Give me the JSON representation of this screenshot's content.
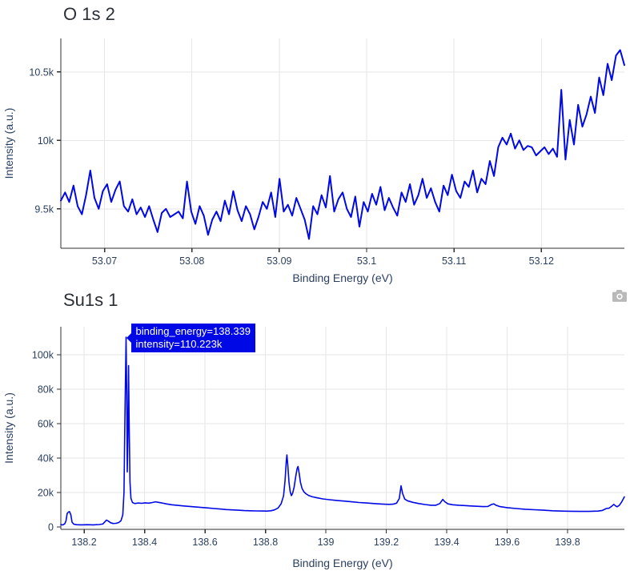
{
  "colors": {
    "line": "#0008e6",
    "grid": "#e6e6e6",
    "axis": "#2f2f2f",
    "tick_text": "#2a3f5f",
    "axis_title_text": "#2a3f5f",
    "chart_title_text": "#2b2f36",
    "tooltip_bg": "#0008e6",
    "tooltip_text": "#ffffff",
    "camera_icon": "#b9b9b9"
  },
  "modebar": {
    "camera_icon": "download-plot-as-png"
  },
  "chart_data": [
    {
      "type": "line",
      "title": "O 1s 2",
      "xlabel": "Binding Energy (eV)",
      "ylabel": "Intensity (a.u.)",
      "y_unit": "k (thousands, a.u.)",
      "xlim": [
        53.065,
        53.1295
      ],
      "ylim": [
        9.212,
        10.745
      ],
      "grid": true,
      "legend": "none",
      "x_ticks": {
        "values": [
          53.07,
          53.08,
          53.09,
          53.1,
          53.11,
          53.12
        ],
        "labels": [
          "53.07",
          "53.08",
          "53.09",
          "53.1",
          "53.11",
          "53.12"
        ]
      },
      "y_ticks": {
        "values": [
          9.5,
          10,
          10.5
        ],
        "labels": [
          "9.5k",
          "10k",
          "10.5k"
        ]
      },
      "x_start": 53.065,
      "x_end": 53.1295,
      "values": [
        9.56,
        9.62,
        9.55,
        9.67,
        9.52,
        9.46,
        9.6,
        9.78,
        9.58,
        9.5,
        9.63,
        9.68,
        9.55,
        9.64,
        9.7,
        9.52,
        9.48,
        9.57,
        9.46,
        9.51,
        9.44,
        9.52,
        9.42,
        9.33,
        9.47,
        9.5,
        9.44,
        9.46,
        9.48,
        9.43,
        9.7,
        9.48,
        9.39,
        9.52,
        9.45,
        9.31,
        9.42,
        9.48,
        9.41,
        9.56,
        9.46,
        9.63,
        9.49,
        9.41,
        9.52,
        9.46,
        9.35,
        9.44,
        9.55,
        9.5,
        9.62,
        9.44,
        9.72,
        9.48,
        9.53,
        9.45,
        9.58,
        9.5,
        9.42,
        9.28,
        9.52,
        9.46,
        9.6,
        9.51,
        9.74,
        9.48,
        9.57,
        9.62,
        9.5,
        9.44,
        9.59,
        9.37,
        9.55,
        9.48,
        9.61,
        9.53,
        9.66,
        9.49,
        9.58,
        9.51,
        9.45,
        9.62,
        9.55,
        9.68,
        9.53,
        9.6,
        9.72,
        9.58,
        9.65,
        9.55,
        9.48,
        9.67,
        9.6,
        9.75,
        9.63,
        9.58,
        9.7,
        9.66,
        9.78,
        9.62,
        9.72,
        9.68,
        9.85,
        9.74,
        9.95,
        10.02,
        9.97,
        10.05,
        9.94,
        10.0,
        9.93,
        9.96,
        9.95,
        9.89,
        9.92,
        9.95,
        9.9,
        9.94,
        9.88,
        10.37,
        9.86,
        10.15,
        9.97,
        10.26,
        10.1,
        10.19,
        10.32,
        10.2,
        10.46,
        10.33,
        10.56,
        10.44,
        10.62,
        10.66,
        10.55
      ]
    },
    {
      "type": "line",
      "title": "Su1s 1",
      "xlabel": "Binding Energy (eV)",
      "ylabel": "Intensity (a.u.)",
      "y_unit": "k (thousands, a.u.)",
      "xlim": [
        138.123,
        139.988
      ],
      "ylim": [
        -1.4,
        116.3
      ],
      "grid": true,
      "legend": "none",
      "x_ticks": {
        "values": [
          138.2,
          138.4,
          138.6,
          138.8,
          139,
          139.2,
          139.4,
          139.6,
          139.8
        ],
        "labels": [
          "138.2",
          "138.4",
          "138.6",
          "138.8",
          "139",
          "139.2",
          "139.4",
          "139.6",
          "139.8"
        ]
      },
      "y_ticks": {
        "values": [
          0,
          20,
          40,
          60,
          80,
          100
        ],
        "labels": [
          "0",
          "20k",
          "40k",
          "60k",
          "80k",
          "100k"
        ]
      },
      "tooltip": {
        "line1": "binding_energy=138.339",
        "line2": "intensity=110.223k",
        "binding_energy": 138.339,
        "intensity_k": 110.223
      },
      "x": [
        138.123,
        138.13,
        138.136,
        138.14,
        138.144,
        138.148,
        138.152,
        138.156,
        138.16,
        138.166,
        138.175,
        138.19,
        138.21,
        138.23,
        138.25,
        138.262,
        138.27,
        138.274,
        138.28,
        138.288,
        138.296,
        138.305,
        138.314,
        138.322,
        138.328,
        138.332,
        138.335,
        138.339,
        138.341,
        138.343,
        138.345,
        138.347,
        138.349,
        138.352,
        138.355,
        138.36,
        138.368,
        138.378,
        138.39,
        138.402,
        138.414,
        138.426,
        138.436,
        138.446,
        138.458,
        138.472,
        138.49,
        138.51,
        138.53,
        138.55,
        138.57,
        138.59,
        138.61,
        138.63,
        138.65,
        138.67,
        138.69,
        138.71,
        138.73,
        138.75,
        138.77,
        138.79,
        138.805,
        138.818,
        138.83,
        138.842,
        138.852,
        138.86,
        138.865,
        138.869,
        138.871,
        138.874,
        138.878,
        138.882,
        138.886,
        138.89,
        138.895,
        138.9,
        138.905,
        138.908,
        138.912,
        138.916,
        138.921,
        138.927,
        138.934,
        138.943,
        138.956,
        138.972,
        138.99,
        139.012,
        139.036,
        139.06,
        139.085,
        139.11,
        139.135,
        139.16,
        139.185,
        139.208,
        139.222,
        139.234,
        139.243,
        139.249,
        139.254,
        139.261,
        139.27,
        139.288,
        139.308,
        139.328,
        139.348,
        139.364,
        139.377,
        139.387,
        139.394,
        139.404,
        139.42,
        139.44,
        139.46,
        139.48,
        139.5,
        139.52,
        139.536,
        139.548,
        139.556,
        139.563,
        139.576,
        139.6,
        139.63,
        139.66,
        139.69,
        139.72,
        139.75,
        139.78,
        139.81,
        139.84,
        139.87,
        139.9,
        139.915,
        139.928,
        139.937,
        139.946,
        139.953,
        139.959,
        139.964,
        139.971,
        139.979,
        139.985,
        139.988
      ],
      "y": [
        1.3,
        1.2,
        1.8,
        3.5,
        7.8,
        8.6,
        8.9,
        7.0,
        2.8,
        1.6,
        1.3,
        1.2,
        1.3,
        1.2,
        1.4,
        1.7,
        3.2,
        4.0,
        3.4,
        2.4,
        2.0,
        2.1,
        2.5,
        3.6,
        7.0,
        20.0,
        62.0,
        110.223,
        78.0,
        32.0,
        52.0,
        93.7,
        62.0,
        26.0,
        16.5,
        14.2,
        13.6,
        13.9,
        13.7,
        14.0,
        13.8,
        14.2,
        14.6,
        14.3,
        13.9,
        13.4,
        12.9,
        12.5,
        12.2,
        11.9,
        11.6,
        11.3,
        11.0,
        10.7,
        10.4,
        10.1,
        9.9,
        9.7,
        9.5,
        9.4,
        9.3,
        9.25,
        9.2,
        9.4,
        9.9,
        11.0,
        13.5,
        18.0,
        27.0,
        38.0,
        41.8,
        36.0,
        26.0,
        20.5,
        18.2,
        19.5,
        23.0,
        29.0,
        34.0,
        35.1,
        31.0,
        26.0,
        22.5,
        20.5,
        19.3,
        18.3,
        17.5,
        16.9,
        16.3,
        15.8,
        15.4,
        15.0,
        14.6,
        14.2,
        13.9,
        13.6,
        13.3,
        13.1,
        13.2,
        13.8,
        16.5,
        23.9,
        19.5,
        16.2,
        15.2,
        14.3,
        13.6,
        13.0,
        12.6,
        12.6,
        13.6,
        16.0,
        14.6,
        13.4,
        12.9,
        12.6,
        12.4,
        12.2,
        12.0,
        11.8,
        11.9,
        13.0,
        13.4,
        12.6,
        11.8,
        11.2,
        10.7,
        10.3,
        10.0,
        9.7,
        9.4,
        9.2,
        9.1,
        9.0,
        9.0,
        9.2,
        9.6,
        10.7,
        10.9,
        12.0,
        13.1,
        12.2,
        11.7,
        12.5,
        14.5,
        16.5,
        17.5
      ]
    }
  ]
}
